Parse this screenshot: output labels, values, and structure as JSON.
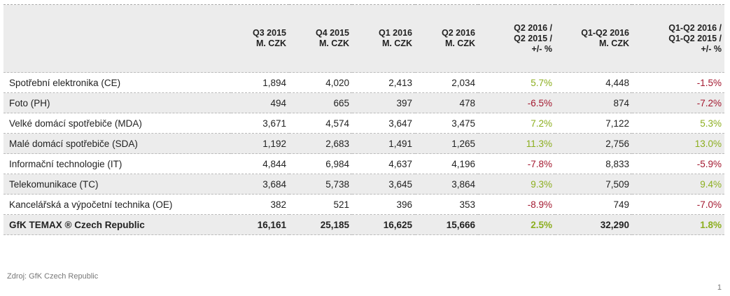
{
  "header": {
    "columns": [
      [
        "Q3 2015",
        "M. CZK"
      ],
      [
        "Q4 2015",
        "M. CZK"
      ],
      [
        "Q1 2016",
        "M. CZK"
      ],
      [
        "Q2 2016",
        "M. CZK"
      ],
      [
        "Q2 2016 /",
        "Q2 2015 /",
        "+/- %"
      ],
      [
        "Q1-Q2 2016",
        "M. CZK"
      ],
      [
        "Q1-Q2 2016 /",
        "Q1-Q2 2015 /",
        "+/- %"
      ]
    ]
  },
  "table": {
    "rows": [
      {
        "label": "Spotřební elektronika (CE)",
        "cells": [
          "1,894",
          "4,020",
          "2,413",
          "2,034",
          "5.7%",
          "4,448",
          "-1.5%"
        ]
      },
      {
        "label": "Foto (PH)",
        "cells": [
          "494",
          "665",
          "397",
          "478",
          "-6.5%",
          "874",
          "-7.2%"
        ]
      },
      {
        "label": "Velké domácí spotřebiče (MDA)",
        "cells": [
          "3,671",
          "4,574",
          "3,647",
          "3,475",
          "7.2%",
          "7,122",
          "5.3%"
        ]
      },
      {
        "label": "Malé domácí spotřebiče (SDA)",
        "cells": [
          "1,192",
          "2,683",
          "1,491",
          "1,265",
          "11.3%",
          "2,756",
          "13.0%"
        ]
      },
      {
        "label": "Informační technologie (IT)",
        "cells": [
          "4,844",
          "6,984",
          "4,637",
          "4,196",
          "-7.8%",
          "8,833",
          "-5.9%"
        ]
      },
      {
        "label": "Telekomunikace (TC)",
        "cells": [
          "3,684",
          "5,738",
          "3,645",
          "3,864",
          "9.3%",
          "7,509",
          "9.4%"
        ]
      },
      {
        "label": "Kancelářská a výpočetní technika (OE)",
        "cells": [
          "382",
          "521",
          "396",
          "353",
          "-8.9%",
          "749",
          "-7.0%"
        ]
      },
      {
        "label": "GfK TEMAX ® Czech Republic",
        "cells": [
          "16,161",
          "25,185",
          "16,625",
          "15,666",
          "2.5%",
          "32,290",
          "1.8%"
        ]
      }
    ]
  },
  "footer": {
    "source": "Zdroj: GfK Czech Republic",
    "page": "1"
  }
}
